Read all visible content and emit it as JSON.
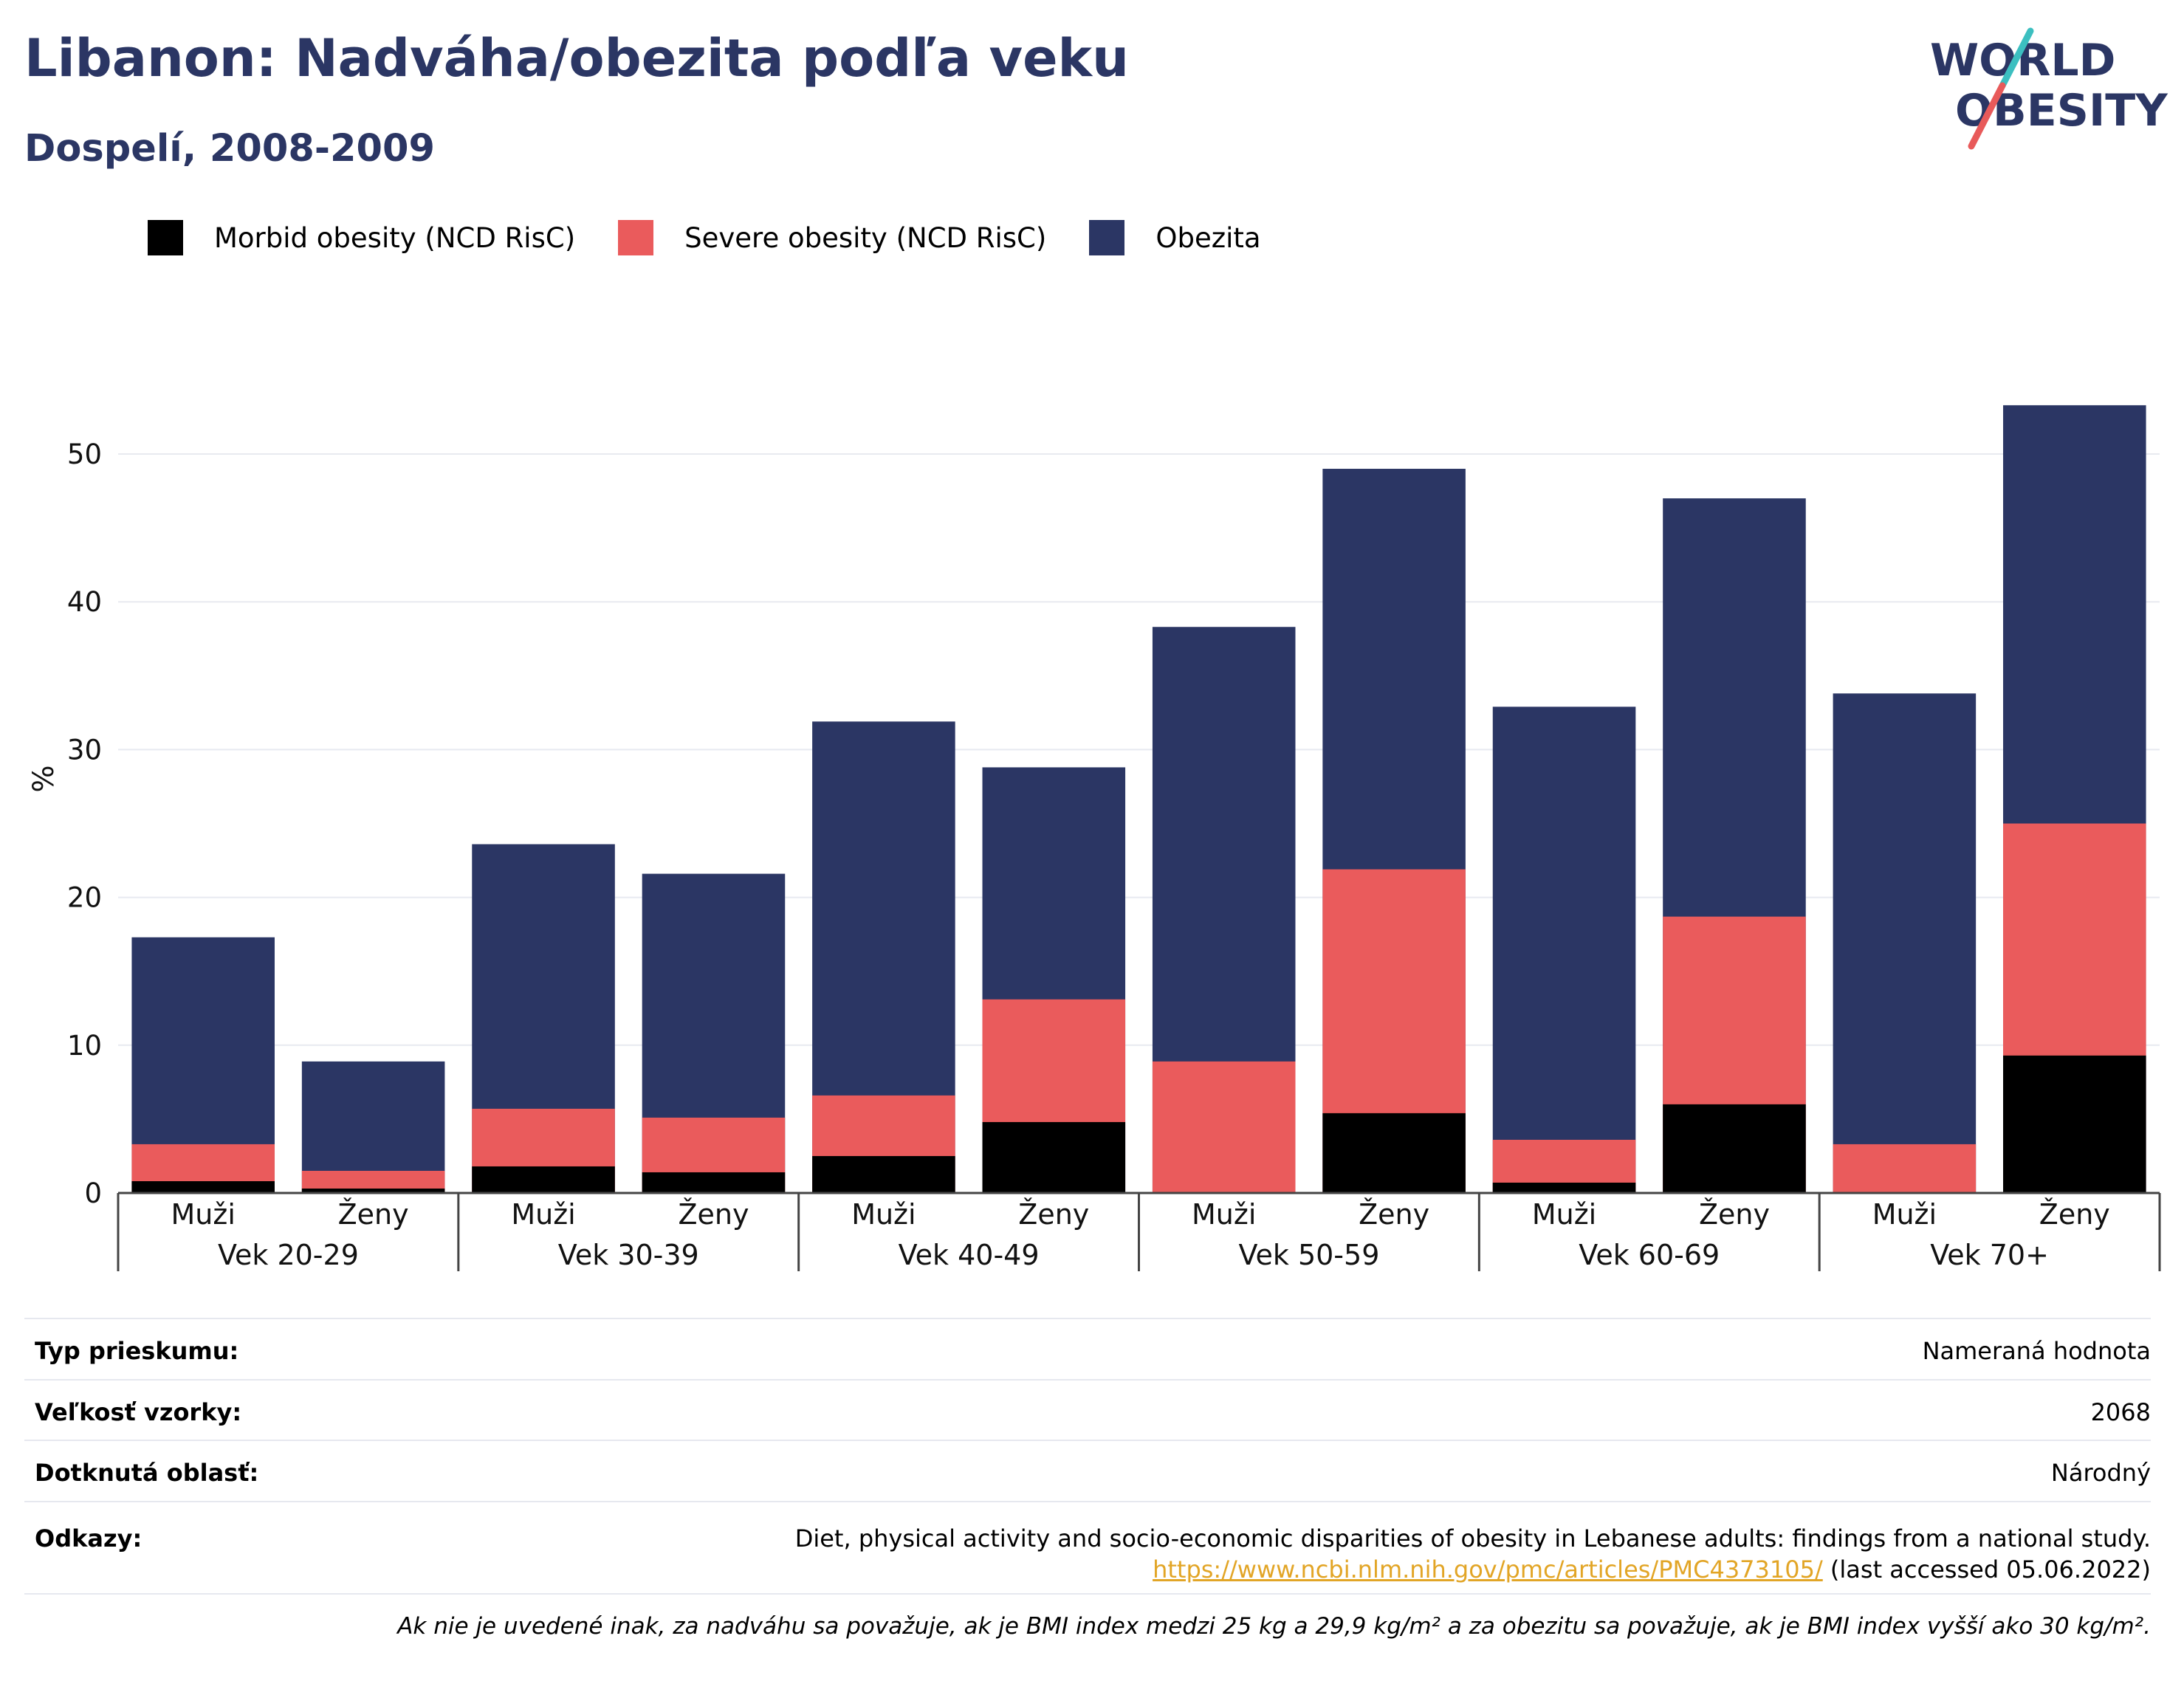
{
  "title": "Libanon: Nadváha/obezita podľa veku",
  "subtitle": "Dospelí, 2008-2009",
  "logo": {
    "line1": "WORLD",
    "line2": "OBESITY",
    "accent_color": "#3cbfc0",
    "slash_color": "#e85a5a"
  },
  "colors": {
    "morbid": "#000000",
    "severe": "#ea5b5c",
    "obesity": "#2b3664",
    "grid": "#e8eaf0",
    "axis": "#444444"
  },
  "chart_data": {
    "type": "bar",
    "stacked": "overlay",
    "ylabel": "%",
    "ylim": [
      0,
      55
    ],
    "yticks": [
      0,
      10,
      20,
      30,
      40,
      50
    ],
    "grid": true,
    "legend_position": "top-left",
    "groups": [
      "Vek 20-29",
      "Vek 30-39",
      "Vek 40-49",
      "Vek 50-59",
      "Vek 60-69",
      "Vek 70+"
    ],
    "subcategories": [
      "Muži",
      "Ženy"
    ],
    "series": [
      {
        "name": "Obezita",
        "key": "obesity",
        "values": [
          17.3,
          8.9,
          23.6,
          21.6,
          31.9,
          28.8,
          38.3,
          49.0,
          32.9,
          47.0,
          33.8,
          53.3
        ]
      },
      {
        "name": "Severe obesity (NCD RisC)",
        "key": "severe",
        "values": [
          3.3,
          1.5,
          5.7,
          5.1,
          6.6,
          13.1,
          8.9,
          21.9,
          3.6,
          18.7,
          3.3,
          25.0
        ]
      },
      {
        "name": "Morbid obesity (NCD RisC)",
        "key": "morbid",
        "values": [
          0.8,
          0.3,
          1.8,
          1.4,
          2.5,
          4.8,
          0.0,
          5.4,
          0.7,
          6.0,
          0.0,
          9.3
        ]
      }
    ]
  },
  "legend": [
    {
      "label": "Morbid obesity (NCD RisC)",
      "color": "#000000"
    },
    {
      "label": "Severe obesity (NCD RisC)",
      "color": "#ea5b5c"
    },
    {
      "label": "Obezita",
      "color": "#2b3664"
    }
  ],
  "info": {
    "survey_type_label": "Typ prieskumu:",
    "survey_type_value": "Nameraná hodnota",
    "sample_size_label": "Veľkosť vzorky:",
    "sample_size_value": "2068",
    "area_label": "Dotknutá oblasť:",
    "area_value": "Národný",
    "references_label": "Odkazy:",
    "references_text": "Diet, physical activity and socio-economic disparities of obesity in Lebanese adults: findings from a national study.",
    "references_link": "https://www.ncbi.nlm.nih.gov/pmc/articles/PMC4373105/",
    "references_accessed": "(last accessed 05.06.2022)"
  },
  "footnote": "Ak nie je uvedené inak, za nadváhu sa považuje, ak je BMI index medzi 25 kg a 29,9 kg/m² a za obezitu sa považuje, ak je BMI index vyšší ako 30 kg/m²."
}
